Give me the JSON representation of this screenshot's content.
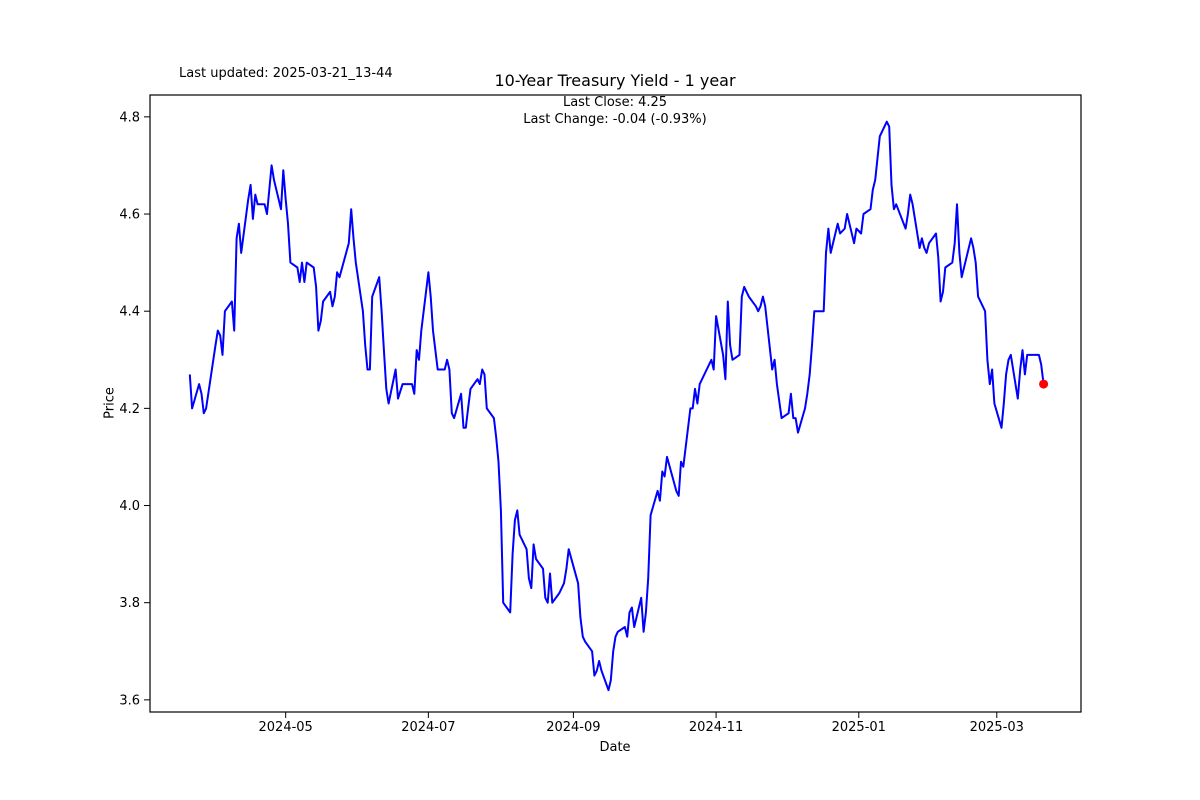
{
  "header": {
    "last_updated": "Last updated: 2025-03-21_13-44",
    "title": "10-Year Treasury Yield - 1 year",
    "subtitle_line1": "Last Close: 4.25",
    "subtitle_line2": "Last Change: -0.04 (-0.93%)"
  },
  "chart_data": {
    "type": "line",
    "title": "10-Year Treasury Yield - 1 year",
    "xlabel": "Date",
    "ylabel": "Price",
    "last_close": 4.25,
    "last_change": "-0.04 (-0.93%)",
    "line_color": "#0000ff",
    "marker_color": "#ff0000",
    "grid": false,
    "legend": "none",
    "x_tick_labels": [
      "2024-05",
      "2024-07",
      "2024-09",
      "2024-11",
      "2025-01",
      "2025-03"
    ],
    "y_ticks": [
      3.6,
      3.8,
      4.0,
      4.2,
      4.4,
      4.6,
      4.8
    ],
    "xlim": [
      "2024-03-04",
      "2025-04-06"
    ],
    "ylim": [
      3.575,
      4.845
    ],
    "series": [
      {
        "name": "10-Year Treasury Yield",
        "points": [
          [
            "2024-03-21",
            4.27
          ],
          [
            "2024-03-22",
            4.2
          ],
          [
            "2024-03-25",
            4.25
          ],
          [
            "2024-03-26",
            4.23
          ],
          [
            "2024-03-27",
            4.19
          ],
          [
            "2024-03-28",
            4.2
          ],
          [
            "2024-04-01",
            4.33
          ],
          [
            "2024-04-02",
            4.36
          ],
          [
            "2024-04-03",
            4.35
          ],
          [
            "2024-04-04",
            4.31
          ],
          [
            "2024-04-05",
            4.4
          ],
          [
            "2024-04-08",
            4.42
          ],
          [
            "2024-04-09",
            4.36
          ],
          [
            "2024-04-10",
            4.55
          ],
          [
            "2024-04-11",
            4.58
          ],
          [
            "2024-04-12",
            4.52
          ],
          [
            "2024-04-15",
            4.63
          ],
          [
            "2024-04-16",
            4.66
          ],
          [
            "2024-04-17",
            4.59
          ],
          [
            "2024-04-18",
            4.64
          ],
          [
            "2024-04-19",
            4.62
          ],
          [
            "2024-04-22",
            4.62
          ],
          [
            "2024-04-23",
            4.6
          ],
          [
            "2024-04-24",
            4.65
          ],
          [
            "2024-04-25",
            4.7
          ],
          [
            "2024-04-26",
            4.67
          ],
          [
            "2024-04-29",
            4.61
          ],
          [
            "2024-04-30",
            4.69
          ],
          [
            "2024-05-01",
            4.63
          ],
          [
            "2024-05-02",
            4.58
          ],
          [
            "2024-05-03",
            4.5
          ],
          [
            "2024-05-06",
            4.49
          ],
          [
            "2024-05-07",
            4.46
          ],
          [
            "2024-05-08",
            4.5
          ],
          [
            "2024-05-09",
            4.46
          ],
          [
            "2024-05-10",
            4.5
          ],
          [
            "2024-05-13",
            4.49
          ],
          [
            "2024-05-14",
            4.45
          ],
          [
            "2024-05-15",
            4.36
          ],
          [
            "2024-05-16",
            4.38
          ],
          [
            "2024-05-17",
            4.42
          ],
          [
            "2024-05-20",
            4.44
          ],
          [
            "2024-05-21",
            4.41
          ],
          [
            "2024-05-22",
            4.43
          ],
          [
            "2024-05-23",
            4.48
          ],
          [
            "2024-05-24",
            4.47
          ],
          [
            "2024-05-28",
            4.54
          ],
          [
            "2024-05-29",
            4.61
          ],
          [
            "2024-05-30",
            4.55
          ],
          [
            "2024-05-31",
            4.5
          ],
          [
            "2024-06-03",
            4.4
          ],
          [
            "2024-06-04",
            4.33
          ],
          [
            "2024-06-05",
            4.28
          ],
          [
            "2024-06-06",
            4.28
          ],
          [
            "2024-06-07",
            4.43
          ],
          [
            "2024-06-10",
            4.47
          ],
          [
            "2024-06-11",
            4.4
          ],
          [
            "2024-06-12",
            4.32
          ],
          [
            "2024-06-13",
            4.24
          ],
          [
            "2024-06-14",
            4.21
          ],
          [
            "2024-06-17",
            4.28
          ],
          [
            "2024-06-18",
            4.22
          ],
          [
            "2024-06-20",
            4.25
          ],
          [
            "2024-06-21",
            4.25
          ],
          [
            "2024-06-24",
            4.25
          ],
          [
            "2024-06-25",
            4.23
          ],
          [
            "2024-06-26",
            4.32
          ],
          [
            "2024-06-27",
            4.3
          ],
          [
            "2024-06-28",
            4.36
          ],
          [
            "2024-07-01",
            4.48
          ],
          [
            "2024-07-02",
            4.43
          ],
          [
            "2024-07-03",
            4.36
          ],
          [
            "2024-07-05",
            4.28
          ],
          [
            "2024-07-08",
            4.28
          ],
          [
            "2024-07-09",
            4.3
          ],
          [
            "2024-07-10",
            4.28
          ],
          [
            "2024-07-11",
            4.19
          ],
          [
            "2024-07-12",
            4.18
          ],
          [
            "2024-07-15",
            4.23
          ],
          [
            "2024-07-16",
            4.16
          ],
          [
            "2024-07-17",
            4.16
          ],
          [
            "2024-07-18",
            4.2
          ],
          [
            "2024-07-19",
            4.24
          ],
          [
            "2024-07-22",
            4.26
          ],
          [
            "2024-07-23",
            4.25
          ],
          [
            "2024-07-24",
            4.28
          ],
          [
            "2024-07-25",
            4.27
          ],
          [
            "2024-07-26",
            4.2
          ],
          [
            "2024-07-29",
            4.18
          ],
          [
            "2024-07-30",
            4.14
          ],
          [
            "2024-07-31",
            4.09
          ],
          [
            "2024-08-01",
            3.99
          ],
          [
            "2024-08-02",
            3.8
          ],
          [
            "2024-08-05",
            3.78
          ],
          [
            "2024-08-06",
            3.9
          ],
          [
            "2024-08-07",
            3.97
          ],
          [
            "2024-08-08",
            3.99
          ],
          [
            "2024-08-09",
            3.94
          ],
          [
            "2024-08-12",
            3.91
          ],
          [
            "2024-08-13",
            3.85
          ],
          [
            "2024-08-14",
            3.83
          ],
          [
            "2024-08-15",
            3.92
          ],
          [
            "2024-08-16",
            3.89
          ],
          [
            "2024-08-19",
            3.87
          ],
          [
            "2024-08-20",
            3.81
          ],
          [
            "2024-08-21",
            3.8
          ],
          [
            "2024-08-22",
            3.86
          ],
          [
            "2024-08-23",
            3.8
          ],
          [
            "2024-08-26",
            3.82
          ],
          [
            "2024-08-27",
            3.83
          ],
          [
            "2024-08-28",
            3.84
          ],
          [
            "2024-08-29",
            3.87
          ],
          [
            "2024-08-30",
            3.91
          ],
          [
            "2024-09-03",
            3.84
          ],
          [
            "2024-09-04",
            3.77
          ],
          [
            "2024-09-05",
            3.73
          ],
          [
            "2024-09-06",
            3.72
          ],
          [
            "2024-09-09",
            3.7
          ],
          [
            "2024-09-10",
            3.65
          ],
          [
            "2024-09-11",
            3.66
          ],
          [
            "2024-09-12",
            3.68
          ],
          [
            "2024-09-13",
            3.66
          ],
          [
            "2024-09-16",
            3.62
          ],
          [
            "2024-09-17",
            3.64
          ],
          [
            "2024-09-18",
            3.7
          ],
          [
            "2024-09-19",
            3.73
          ],
          [
            "2024-09-20",
            3.74
          ],
          [
            "2024-09-23",
            3.75
          ],
          [
            "2024-09-24",
            3.73
          ],
          [
            "2024-09-25",
            3.78
          ],
          [
            "2024-09-26",
            3.79
          ],
          [
            "2024-09-27",
            3.75
          ],
          [
            "2024-09-30",
            3.81
          ],
          [
            "2024-10-01",
            3.74
          ],
          [
            "2024-10-02",
            3.78
          ],
          [
            "2024-10-03",
            3.85
          ],
          [
            "2024-10-04",
            3.98
          ],
          [
            "2024-10-07",
            4.03
          ],
          [
            "2024-10-08",
            4.01
          ],
          [
            "2024-10-09",
            4.07
          ],
          [
            "2024-10-10",
            4.06
          ],
          [
            "2024-10-11",
            4.1
          ],
          [
            "2024-10-15",
            4.03
          ],
          [
            "2024-10-16",
            4.02
          ],
          [
            "2024-10-17",
            4.09
          ],
          [
            "2024-10-18",
            4.08
          ],
          [
            "2024-10-21",
            4.2
          ],
          [
            "2024-10-22",
            4.2
          ],
          [
            "2024-10-23",
            4.24
          ],
          [
            "2024-10-24",
            4.21
          ],
          [
            "2024-10-25",
            4.25
          ],
          [
            "2024-10-28",
            4.28
          ],
          [
            "2024-10-29",
            4.29
          ],
          [
            "2024-10-30",
            4.3
          ],
          [
            "2024-10-31",
            4.28
          ],
          [
            "2024-11-01",
            4.39
          ],
          [
            "2024-11-04",
            4.31
          ],
          [
            "2024-11-05",
            4.26
          ],
          [
            "2024-11-06",
            4.42
          ],
          [
            "2024-11-07",
            4.33
          ],
          [
            "2024-11-08",
            4.3
          ],
          [
            "2024-11-11",
            4.31
          ],
          [
            "2024-11-12",
            4.43
          ],
          [
            "2024-11-13",
            4.45
          ],
          [
            "2024-11-14",
            4.44
          ],
          [
            "2024-11-15",
            4.43
          ],
          [
            "2024-11-18",
            4.41
          ],
          [
            "2024-11-19",
            4.4
          ],
          [
            "2024-11-20",
            4.41
          ],
          [
            "2024-11-21",
            4.43
          ],
          [
            "2024-11-22",
            4.41
          ],
          [
            "2024-11-25",
            4.28
          ],
          [
            "2024-11-26",
            4.3
          ],
          [
            "2024-11-27",
            4.25
          ],
          [
            "2024-11-29",
            4.18
          ],
          [
            "2024-12-02",
            4.19
          ],
          [
            "2024-12-03",
            4.23
          ],
          [
            "2024-12-04",
            4.18
          ],
          [
            "2024-12-05",
            4.18
          ],
          [
            "2024-12-06",
            4.15
          ],
          [
            "2024-12-09",
            4.2
          ],
          [
            "2024-12-10",
            4.23
          ],
          [
            "2024-12-11",
            4.27
          ],
          [
            "2024-12-12",
            4.33
          ],
          [
            "2024-12-13",
            4.4
          ],
          [
            "2024-12-16",
            4.4
          ],
          [
            "2024-12-17",
            4.4
          ],
          [
            "2024-12-18",
            4.52
          ],
          [
            "2024-12-19",
            4.57
          ],
          [
            "2024-12-20",
            4.52
          ],
          [
            "2024-12-23",
            4.58
          ],
          [
            "2024-12-24",
            4.56
          ],
          [
            "2024-12-26",
            4.57
          ],
          [
            "2024-12-27",
            4.6
          ],
          [
            "2024-12-30",
            4.54
          ],
          [
            "2024-12-31",
            4.57
          ],
          [
            "2025-01-02",
            4.56
          ],
          [
            "2025-01-03",
            4.6
          ],
          [
            "2025-01-06",
            4.61
          ],
          [
            "2025-01-07",
            4.65
          ],
          [
            "2025-01-08",
            4.67
          ],
          [
            "2025-01-10",
            4.76
          ],
          [
            "2025-01-13",
            4.79
          ],
          [
            "2025-01-14",
            4.78
          ],
          [
            "2025-01-15",
            4.66
          ],
          [
            "2025-01-16",
            4.61
          ],
          [
            "2025-01-17",
            4.62
          ],
          [
            "2025-01-21",
            4.57
          ],
          [
            "2025-01-22",
            4.6
          ],
          [
            "2025-01-23",
            4.64
          ],
          [
            "2025-01-24",
            4.62
          ],
          [
            "2025-01-27",
            4.53
          ],
          [
            "2025-01-28",
            4.55
          ],
          [
            "2025-01-29",
            4.53
          ],
          [
            "2025-01-30",
            4.52
          ],
          [
            "2025-01-31",
            4.54
          ],
          [
            "2025-02-03",
            4.56
          ],
          [
            "2025-02-04",
            4.51
          ],
          [
            "2025-02-05",
            4.42
          ],
          [
            "2025-02-06",
            4.44
          ],
          [
            "2025-02-07",
            4.49
          ],
          [
            "2025-02-10",
            4.5
          ],
          [
            "2025-02-11",
            4.54
          ],
          [
            "2025-02-12",
            4.62
          ],
          [
            "2025-02-13",
            4.52
          ],
          [
            "2025-02-14",
            4.47
          ],
          [
            "2025-02-18",
            4.55
          ],
          [
            "2025-02-19",
            4.53
          ],
          [
            "2025-02-20",
            4.5
          ],
          [
            "2025-02-21",
            4.43
          ],
          [
            "2025-02-24",
            4.4
          ],
          [
            "2025-02-25",
            4.3
          ],
          [
            "2025-02-26",
            4.25
          ],
          [
            "2025-02-27",
            4.28
          ],
          [
            "2025-02-28",
            4.21
          ],
          [
            "2025-03-03",
            4.16
          ],
          [
            "2025-03-04",
            4.21
          ],
          [
            "2025-03-05",
            4.27
          ],
          [
            "2025-03-06",
            4.3
          ],
          [
            "2025-03-07",
            4.31
          ],
          [
            "2025-03-10",
            4.22
          ],
          [
            "2025-03-11",
            4.28
          ],
          [
            "2025-03-12",
            4.32
          ],
          [
            "2025-03-13",
            4.27
          ],
          [
            "2025-03-14",
            4.31
          ],
          [
            "2025-03-17",
            4.31
          ],
          [
            "2025-03-18",
            4.31
          ],
          [
            "2025-03-19",
            4.31
          ],
          [
            "2025-03-20",
            4.29
          ],
          [
            "2025-03-21",
            4.25
          ]
        ]
      }
    ]
  }
}
